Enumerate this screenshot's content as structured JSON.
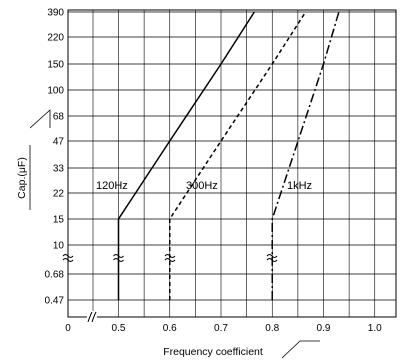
{
  "chart_data": {
    "type": "line",
    "title": "",
    "xlabel": "Frequency coefficient",
    "ylabel": "Cap.(μF)",
    "x_ticks": [
      "0",
      "0.5",
      "0.6",
      "0.7",
      "0.8",
      "0.9",
      "1.0"
    ],
    "y_ticks": [
      "0.47",
      "0.68",
      "10",
      "15",
      "22",
      "33",
      "47",
      "68",
      "100",
      "150",
      "220",
      "390"
    ],
    "xlim": [
      0,
      1.0
    ],
    "grid": true,
    "series": [
      {
        "name": "120Hz",
        "style": "solid",
        "points": [
          {
            "x": 0.5,
            "y": 0.47
          },
          {
            "x": 0.5,
            "y": 15
          },
          {
            "x": 0.6,
            "y": 47
          },
          {
            "x": 0.7,
            "y": 150
          },
          {
            "x": 0.765,
            "y": 390
          }
        ]
      },
      {
        "name": "300Hz",
        "style": "dashed",
        "points": [
          {
            "x": 0.6,
            "y": 0.47
          },
          {
            "x": 0.6,
            "y": 15
          },
          {
            "x": 0.7,
            "y": 47
          },
          {
            "x": 0.8,
            "y": 150
          },
          {
            "x": 0.865,
            "y": 390
          }
        ]
      },
      {
        "name": "1kHz",
        "style": "dash-dot",
        "points": [
          {
            "x": 0.8,
            "y": 0.47
          },
          {
            "x": 0.8,
            "y": 15
          },
          {
            "x": 0.9,
            "y": 150
          },
          {
            "x": 0.93,
            "y": 390
          }
        ]
      }
    ]
  }
}
